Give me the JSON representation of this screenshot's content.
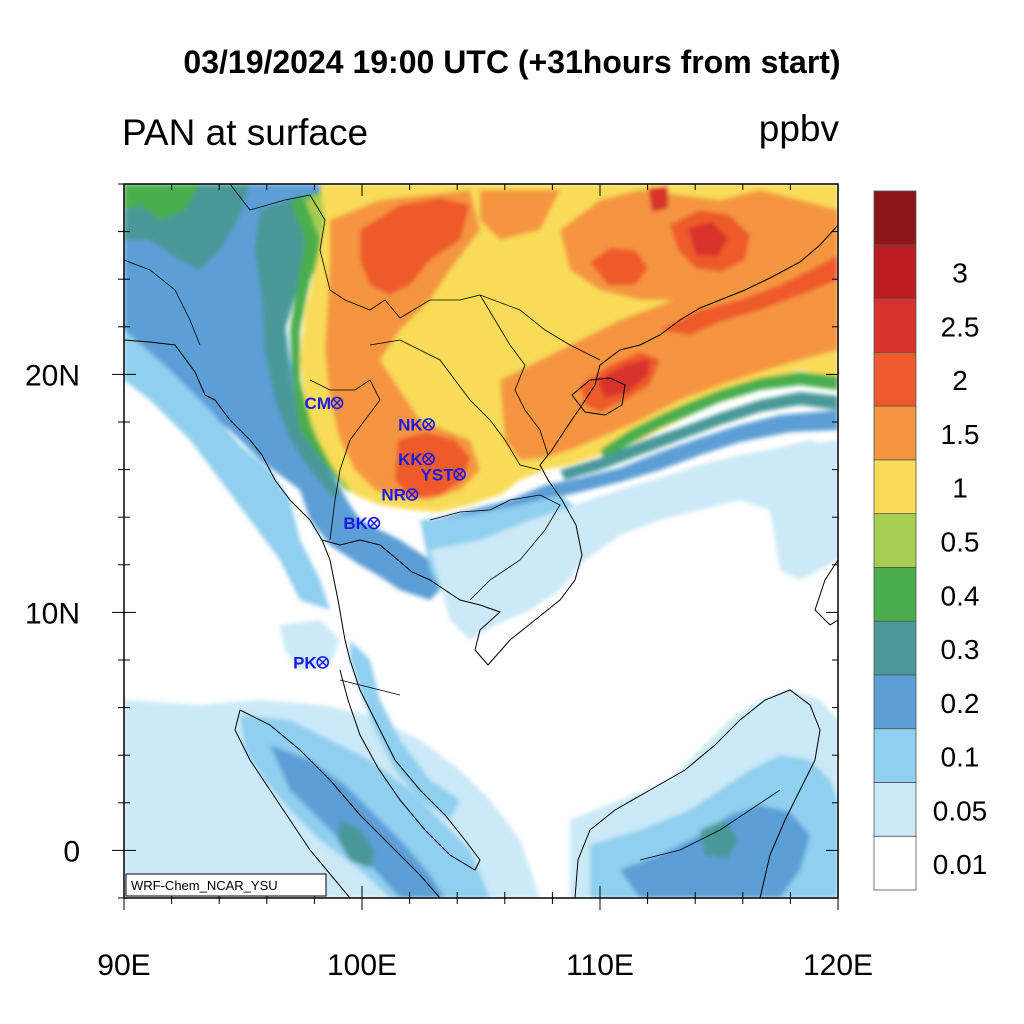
{
  "title": "03/19/2024 19:00 UTC (+31hours from start)",
  "subtitle_left": "PAN at surface",
  "subtitle_right": "ppbv",
  "watermark": "WRF-Chem_NCAR_YSU",
  "axes": {
    "x_ticks": [
      {
        "value": 90,
        "label": "90E"
      },
      {
        "value": 100,
        "label": "100E"
      },
      {
        "value": 110,
        "label": "110E"
      },
      {
        "value": 120,
        "label": "120E"
      }
    ],
    "y_ticks": [
      {
        "value": 20,
        "label": "20N"
      },
      {
        "value": 10,
        "label": "10N"
      },
      {
        "value": 0,
        "label": "0"
      }
    ],
    "lon_range": [
      90,
      120
    ],
    "lat_range": [
      -2,
      28
    ]
  },
  "colorbar": {
    "levels": [
      {
        "label": "0.01",
        "color": "#ffffff"
      },
      {
        "label": "0.05",
        "color": "#cbe9f7"
      },
      {
        "label": "0.1",
        "color": "#8fcfef"
      },
      {
        "label": "0.2",
        "color": "#5b9fd6"
      },
      {
        "label": "0.3",
        "color": "#4a9898"
      },
      {
        "label": "0.4",
        "color": "#4aae4e"
      },
      {
        "label": "0.5",
        "color": "#a6ce50"
      },
      {
        "label": "1",
        "color": "#f8dc58"
      },
      {
        "label": "1.5",
        "color": "#f59540"
      },
      {
        "label": "2",
        "color": "#ee5a2c"
      },
      {
        "label": "2.5",
        "color": "#d8332a"
      },
      {
        "label": "3",
        "color": "#bb1c22"
      },
      {
        "label": "",
        "color": "#8c1518"
      }
    ]
  },
  "stations": [
    {
      "name": "CM",
      "lon": 98.95,
      "lat": 18.8
    },
    {
      "name": "NK",
      "lon": 102.8,
      "lat": 17.9
    },
    {
      "name": "KK",
      "lon": 102.8,
      "lat": 16.45
    },
    {
      "name": "YST",
      "lon": 104.1,
      "lat": 15.8
    },
    {
      "name": "NR",
      "lon": 102.1,
      "lat": 14.95
    },
    {
      "name": "BK",
      "lon": 100.5,
      "lat": 13.75
    },
    {
      "name": "PK",
      "lon": 98.35,
      "lat": 7.9
    }
  ],
  "colors": {
    "station_label": "#1a1ae6",
    "station_marker": "#1a1ae6"
  }
}
